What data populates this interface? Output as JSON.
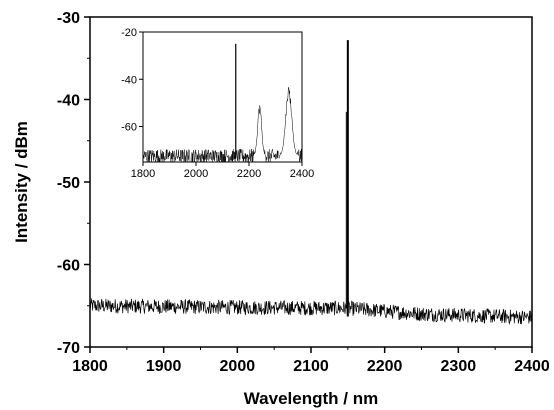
{
  "chart_data": [
    {
      "id": "main",
      "type": "line",
      "title": "",
      "xlabel": "Wavelength / nm",
      "ylabel": "Intensity / dBm",
      "xlim": [
        1800,
        2400
      ],
      "ylim": [
        -70,
        -30
      ],
      "xticks": [
        1800,
        1900,
        2000,
        2100,
        2200,
        2300,
        2400
      ],
      "yticks": [
        -70,
        -60,
        -50,
        -40,
        -30
      ],
      "grid": false,
      "legend": "none",
      "series": [
        {
          "color": "#000000",
          "noise_floor": {
            "x": [
              1800,
              2000,
              2150,
              2250,
              2400
            ],
            "y": [
              -65.0,
              -65.2,
              -65.3,
              -66.0,
              -66.4
            ],
            "amplitude_db": 0.9
          },
          "peaks": [
            {
              "x": 2150,
              "y": -32.8
            }
          ]
        }
      ]
    },
    {
      "id": "inset",
      "type": "line",
      "title": "",
      "xlim": [
        1800,
        2400
      ],
      "ylim": [
        -75,
        -20
      ],
      "xticks": [
        1800,
        2000,
        2200,
        2400
      ],
      "yticks": [
        -20,
        -40,
        -60
      ],
      "grid": false,
      "legend": "none",
      "series": [
        {
          "color": "#000000",
          "noise_floor": {
            "x": [
              1800,
              2400
            ],
            "y": [
              -72.5,
              -72.5
            ],
            "amplitude_db": 3
          },
          "peaks": [
            {
              "x": 2150,
              "y": -25,
              "type": "line"
            },
            {
              "x": 2240,
              "y": -52,
              "type": "band",
              "width_nm": 30
            },
            {
              "x": 2350,
              "y": -45,
              "type": "band",
              "width_nm": 45
            }
          ]
        }
      ]
    }
  ]
}
